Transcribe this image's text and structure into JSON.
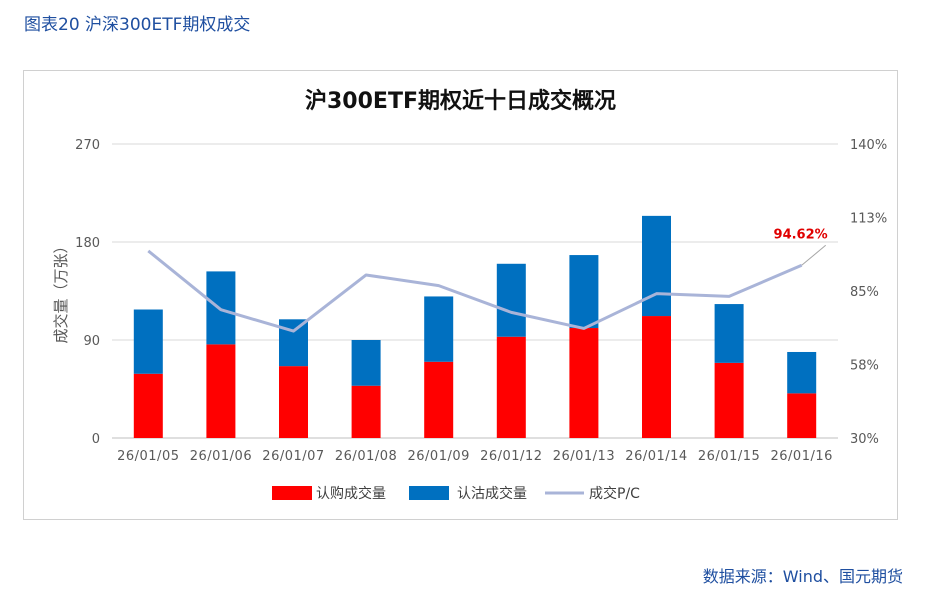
{
  "figure_caption": "图表20 沪深300ETF期权成交",
  "source_note": "数据来源：Wind、国元期货",
  "colors": {
    "call": "#ff0000",
    "put": "#0070c0",
    "pc_line": "#a9b4d8",
    "annotation": "#e00000",
    "caption": "#1f4fa0"
  },
  "chart_data": {
    "type": "bar",
    "stacked": true,
    "title": "沪300ETF期权近十日成交概况",
    "ylabel": "成交量（万张）",
    "ylim": [
      0,
      270
    ],
    "y_ticks": [
      0,
      90,
      180,
      270
    ],
    "y2lim": [
      30,
      140
    ],
    "y2_ticks": [
      "30%",
      "58%",
      "85%",
      "113%",
      "140%"
    ],
    "y2_tick_values": [
      30,
      57.5,
      85,
      112.5,
      140
    ],
    "categories": [
      "26/01/05",
      "26/01/06",
      "26/01/07",
      "26/01/08",
      "26/01/09",
      "26/01/12",
      "26/01/13",
      "26/01/14",
      "26/01/15",
      "26/01/16"
    ],
    "series": [
      {
        "name": "认购成交量",
        "kind": "bar",
        "values": [
          59,
          86,
          66,
          48,
          70,
          93,
          101,
          112,
          69,
          41
        ]
      },
      {
        "name": "认沽成交量",
        "kind": "bar",
        "values": [
          59,
          67,
          43,
          42,
          60,
          67,
          67,
          92,
          54,
          38
        ]
      },
      {
        "name": "成交P/C",
        "kind": "line",
        "axis": "right",
        "values": [
          100,
          78,
          70,
          91,
          87,
          77,
          71,
          84,
          83,
          94.62
        ]
      }
    ],
    "annotations": [
      {
        "category": "26/01/16",
        "series": "成交P/C",
        "text": "94.62%"
      }
    ],
    "legend": {
      "position": "bottom",
      "labels": [
        "认购成交量",
        "认沽成交量",
        "成交P/C"
      ]
    }
  }
}
